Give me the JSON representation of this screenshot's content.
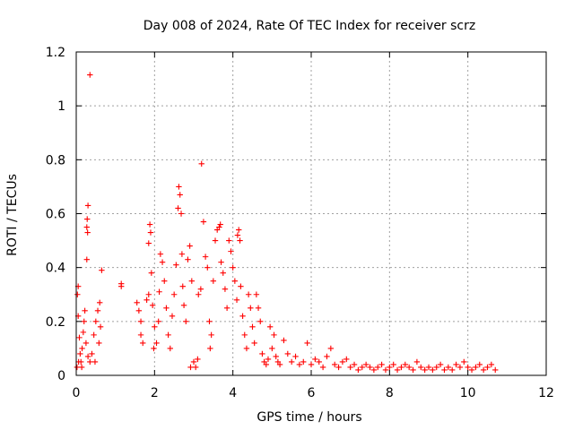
{
  "chart_data": {
    "type": "scatter",
    "title": "Day 008 of 2024, Rate Of TEC Index for receiver scrz",
    "xlabel": "GPS time / hours",
    "ylabel": "ROTI / TECUs",
    "xlim": [
      0,
      12
    ],
    "ylim": [
      0,
      1.2
    ],
    "xticks": [
      0,
      2,
      4,
      6,
      8,
      10,
      12
    ],
    "yticks": [
      0,
      0.2,
      0.4,
      0.6,
      0.8,
      1,
      1.2
    ],
    "xtick_labels": [
      "0",
      "2",
      "4",
      "6",
      "8",
      "10",
      "12"
    ],
    "ytick_labels": [
      "0",
      "0.2",
      "0.4",
      "0.6",
      "0.8",
      "1",
      "1.2"
    ],
    "grid": true,
    "marker": "+",
    "color": "#ff0000",
    "series": [
      {
        "name": "ROTI",
        "points": [
          [
            0.35,
            1.115
          ],
          [
            3.2,
            0.785
          ],
          [
            0.3,
            0.63
          ],
          [
            0.28,
            0.58
          ],
          [
            0.27,
            0.55
          ],
          [
            0.29,
            0.53
          ],
          [
            0.27,
            0.43
          ],
          [
            0.65,
            0.39
          ],
          [
            0.05,
            0.33
          ],
          [
            0.03,
            0.3
          ],
          [
            0.05,
            0.22
          ],
          [
            0.08,
            0.14
          ],
          [
            0.1,
            0.08
          ],
          [
            0.12,
            0.05
          ],
          [
            0.15,
            0.1
          ],
          [
            0.18,
            0.16
          ],
          [
            0.2,
            0.2
          ],
          [
            0.22,
            0.24
          ],
          [
            0.25,
            0.12
          ],
          [
            0.3,
            0.07
          ],
          [
            0.35,
            0.05
          ],
          [
            0.4,
            0.08
          ],
          [
            0.45,
            0.15
          ],
          [
            0.5,
            0.2
          ],
          [
            0.55,
            0.24
          ],
          [
            0.6,
            0.27
          ],
          [
            0.62,
            0.18
          ],
          [
            0.58,
            0.12
          ],
          [
            0.48,
            0.05
          ],
          [
            0.02,
            0.03
          ],
          [
            0.06,
            0.05
          ],
          [
            0.14,
            0.03
          ],
          [
            1.15,
            0.34
          ],
          [
            1.15,
            0.33
          ],
          [
            1.55,
            0.27
          ],
          [
            1.6,
            0.24
          ],
          [
            1.65,
            0.2
          ],
          [
            1.7,
            0.12
          ],
          [
            1.65,
            0.15
          ],
          [
            1.8,
            0.28
          ],
          [
            1.85,
            0.3
          ],
          [
            1.88,
            0.56
          ],
          [
            1.9,
            0.53
          ],
          [
            1.85,
            0.49
          ],
          [
            1.92,
            0.38
          ],
          [
            1.95,
            0.26
          ],
          [
            2.0,
            0.18
          ],
          [
            2.05,
            0.12
          ],
          [
            1.98,
            0.1
          ],
          [
            2.1,
            0.2
          ],
          [
            2.12,
            0.31
          ],
          [
            2.15,
            0.45
          ],
          [
            2.2,
            0.42
          ],
          [
            2.25,
            0.35
          ],
          [
            2.3,
            0.25
          ],
          [
            2.35,
            0.15
          ],
          [
            2.4,
            0.1
          ],
          [
            2.45,
            0.22
          ],
          [
            2.5,
            0.3
          ],
          [
            2.55,
            0.41
          ],
          [
            2.6,
            0.62
          ],
          [
            2.62,
            0.7
          ],
          [
            2.65,
            0.67
          ],
          [
            2.68,
            0.6
          ],
          [
            2.7,
            0.45
          ],
          [
            2.72,
            0.33
          ],
          [
            2.75,
            0.26
          ],
          [
            2.8,
            0.2
          ],
          [
            2.85,
            0.43
          ],
          [
            2.9,
            0.48
          ],
          [
            2.95,
            0.35
          ],
          [
            3.0,
            0.05
          ],
          [
            2.92,
            0.03
          ],
          [
            3.05,
            0.03
          ],
          [
            3.1,
            0.06
          ],
          [
            3.12,
            0.3
          ],
          [
            3.18,
            0.32
          ],
          [
            3.25,
            0.57
          ],
          [
            3.3,
            0.44
          ],
          [
            3.35,
            0.4
          ],
          [
            3.4,
            0.2
          ],
          [
            3.42,
            0.1
          ],
          [
            3.45,
            0.15
          ],
          [
            3.5,
            0.35
          ],
          [
            3.55,
            0.5
          ],
          [
            3.6,
            0.54
          ],
          [
            3.65,
            0.55
          ],
          [
            3.68,
            0.56
          ],
          [
            3.7,
            0.42
          ],
          [
            3.75,
            0.38
          ],
          [
            3.8,
            0.32
          ],
          [
            3.85,
            0.25
          ],
          [
            3.9,
            0.5
          ],
          [
            3.95,
            0.46
          ],
          [
            4.0,
            0.4
          ],
          [
            4.05,
            0.35
          ],
          [
            4.1,
            0.28
          ],
          [
            4.12,
            0.52
          ],
          [
            4.15,
            0.54
          ],
          [
            4.18,
            0.5
          ],
          [
            4.2,
            0.33
          ],
          [
            4.25,
            0.22
          ],
          [
            4.3,
            0.15
          ],
          [
            4.35,
            0.1
          ],
          [
            4.4,
            0.3
          ],
          [
            4.45,
            0.25
          ],
          [
            4.5,
            0.18
          ],
          [
            4.55,
            0.12
          ],
          [
            4.6,
            0.3
          ],
          [
            4.65,
            0.25
          ],
          [
            4.7,
            0.2
          ],
          [
            4.75,
            0.08
          ],
          [
            4.8,
            0.05
          ],
          [
            4.85,
            0.04
          ],
          [
            4.9,
            0.06
          ],
          [
            4.95,
            0.18
          ],
          [
            5.0,
            0.1
          ],
          [
            5.05,
            0.15
          ],
          [
            5.1,
            0.07
          ],
          [
            5.15,
            0.05
          ],
          [
            5.2,
            0.04
          ],
          [
            5.3,
            0.13
          ],
          [
            5.4,
            0.08
          ],
          [
            5.5,
            0.05
          ],
          [
            5.6,
            0.07
          ],
          [
            5.7,
            0.04
          ],
          [
            5.8,
            0.05
          ],
          [
            5.9,
            0.12
          ],
          [
            6.0,
            0.04
          ],
          [
            6.1,
            0.06
          ],
          [
            6.2,
            0.05
          ],
          [
            6.3,
            0.03
          ],
          [
            6.4,
            0.07
          ],
          [
            6.5,
            0.1
          ],
          [
            6.6,
            0.04
          ],
          [
            6.7,
            0.03
          ],
          [
            6.8,
            0.05
          ],
          [
            6.9,
            0.06
          ],
          [
            7.0,
            0.03
          ],
          [
            7.1,
            0.04
          ],
          [
            7.2,
            0.02
          ],
          [
            7.3,
            0.03
          ],
          [
            7.4,
            0.04
          ],
          [
            7.5,
            0.03
          ],
          [
            7.6,
            0.02
          ],
          [
            7.7,
            0.03
          ],
          [
            7.8,
            0.04
          ],
          [
            7.9,
            0.02
          ],
          [
            8.0,
            0.03
          ],
          [
            8.1,
            0.04
          ],
          [
            8.2,
            0.02
          ],
          [
            8.3,
            0.03
          ],
          [
            8.4,
            0.04
          ],
          [
            8.5,
            0.03
          ],
          [
            8.6,
            0.02
          ],
          [
            8.7,
            0.05
          ],
          [
            8.8,
            0.03
          ],
          [
            8.9,
            0.02
          ],
          [
            9.0,
            0.03
          ],
          [
            9.1,
            0.02
          ],
          [
            9.2,
            0.03
          ],
          [
            9.3,
            0.04
          ],
          [
            9.4,
            0.02
          ],
          [
            9.5,
            0.03
          ],
          [
            9.6,
            0.02
          ],
          [
            9.7,
            0.04
          ],
          [
            9.8,
            0.03
          ],
          [
            9.9,
            0.05
          ],
          [
            10.0,
            0.03
          ],
          [
            10.1,
            0.02
          ],
          [
            10.2,
            0.03
          ],
          [
            10.3,
            0.04
          ],
          [
            10.4,
            0.02
          ],
          [
            10.5,
            0.03
          ],
          [
            10.6,
            0.04
          ],
          [
            10.7,
            0.02
          ]
        ]
      }
    ]
  }
}
